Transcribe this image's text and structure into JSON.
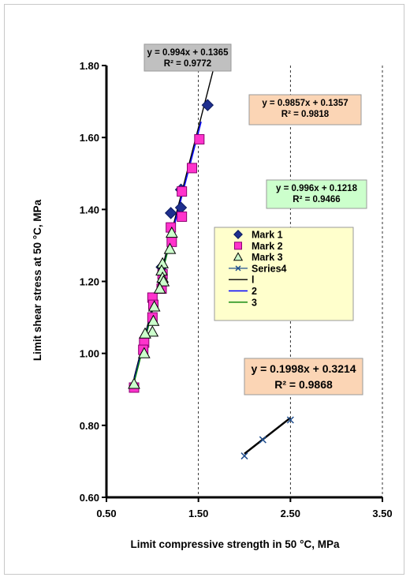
{
  "chart_data": {
    "type": "scatter",
    "title": "",
    "xlabel": "Limit compressive strength in 50 °C, MPa",
    "ylabel": "Limit shear stress at 50 °C, MPa",
    "xlim": [
      0.5,
      3.5
    ],
    "ylim": [
      0.6,
      1.8
    ],
    "x_ticks": [
      "0.50",
      "1.50",
      "2.50",
      "3.50"
    ],
    "y_ticks": [
      "0.60",
      "0.80",
      "1.00",
      "1.20",
      "1.40",
      "1.60",
      "1.80"
    ],
    "grid": "vertical dashed",
    "legend_position": "center-right",
    "series": [
      {
        "name": "Mark 1",
        "marker": "diamond",
        "color": "#1f2f8f",
        "points": [
          [
            1.6,
            1.69
          ],
          [
            1.31,
            1.455
          ],
          [
            1.31,
            1.405
          ],
          [
            1.2,
            1.39
          ],
          [
            1.1,
            1.24
          ]
        ]
      },
      {
        "name": "Mark 2",
        "marker": "square",
        "color": "#ff33cc",
        "points": [
          [
            1.51,
            1.595
          ],
          [
            1.43,
            1.515
          ],
          [
            1.32,
            1.45
          ],
          [
            1.32,
            1.38
          ],
          [
            1.2,
            1.35
          ],
          [
            1.21,
            1.31
          ],
          [
            1.11,
            1.22
          ],
          [
            1.1,
            1.18
          ],
          [
            1.0,
            1.155
          ],
          [
            1.01,
            1.135
          ],
          [
            1.0,
            1.1
          ],
          [
            0.91,
            1.03
          ],
          [
            0.9,
            1.01
          ],
          [
            0.8,
            0.905
          ]
        ]
      },
      {
        "name": "Mark 3",
        "marker": "triangle",
        "color": "#ccffcc",
        "points": [
          [
            1.21,
            1.335
          ],
          [
            1.19,
            1.29
          ],
          [
            1.11,
            1.25
          ],
          [
            1.1,
            1.23
          ],
          [
            1.11,
            1.21
          ],
          [
            1.12,
            1.2
          ],
          [
            1.08,
            1.18
          ],
          [
            1.02,
            1.13
          ],
          [
            1.01,
            1.09
          ],
          [
            1.0,
            1.06
          ],
          [
            0.92,
            1.055
          ],
          [
            0.91,
            1.0
          ],
          [
            0.8,
            0.915
          ]
        ]
      },
      {
        "name": "Series4",
        "marker": "x",
        "color": "#1f4e8f",
        "points": [
          [
            2.0,
            0.715
          ],
          [
            2.2,
            0.76
          ],
          [
            2.5,
            0.815
          ]
        ]
      }
    ],
    "trendlines": [
      {
        "name": "l",
        "color": "#000000",
        "x_range": [
          0.8,
          1.68
        ],
        "slope": 0.994,
        "intercept": 0.1365,
        "equation": "y = 0.994x + 0.1365",
        "r2": "R² = 0.9772",
        "box_fill": "#c0c0c0"
      },
      {
        "name": "2",
        "color": "#0000ff",
        "x_range": [
          0.8,
          1.53
        ],
        "slope": 0.9857,
        "intercept": 0.1357,
        "equation": "y = 0.9857x + 0.1357",
        "r2": "R² = 0.9818",
        "box_fill": "#fbd5b5"
      },
      {
        "name": "3",
        "color": "#008000",
        "x_range": [
          0.8,
          1.24
        ],
        "slope": 0.996,
        "intercept": 0.1218,
        "equation": "y = 0.996x + 0.1218",
        "r2": "R² = 0.9466",
        "box_fill": "#ccffcc"
      },
      {
        "name": "",
        "color": "#000000",
        "x_range": [
          2.0,
          2.5
        ],
        "slope": 0.1998,
        "intercept": 0.3214,
        "equation": "y = 0.1998x + 0.3214",
        "r2": "R² = 0.9868",
        "box_fill": "#fbd5b5"
      }
    ],
    "legend_fill": "#ffffcc"
  }
}
